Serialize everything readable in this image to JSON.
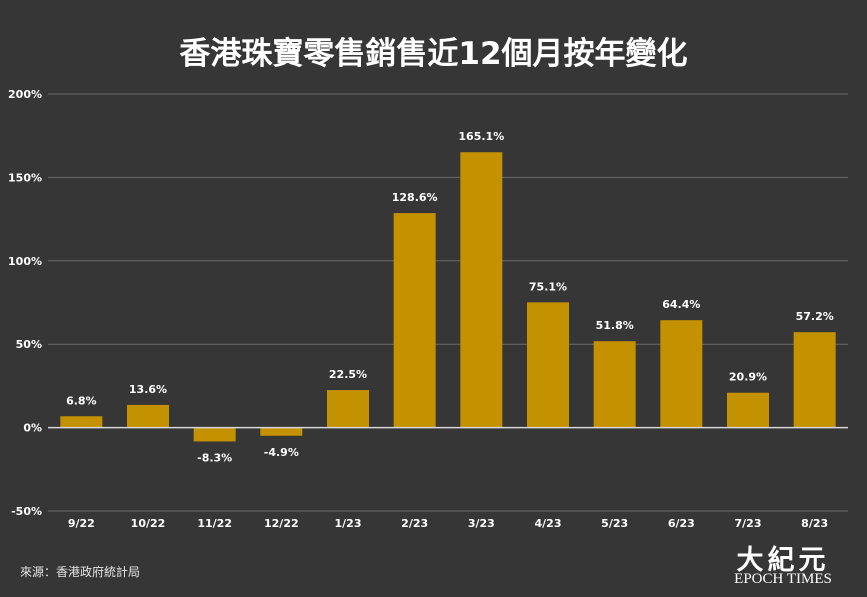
{
  "chart_data": {
    "type": "bar",
    "title": "香港珠寶零售銷售近12個月按年變化",
    "categories": [
      "9/22",
      "10/22",
      "11/22",
      "12/22",
      "1/23",
      "2/23",
      "3/23",
      "4/23",
      "5/23",
      "6/23",
      "7/23",
      "8/23"
    ],
    "values": [
      6.8,
      13.6,
      -8.3,
      -4.9,
      22.5,
      128.6,
      165.1,
      75.1,
      51.8,
      64.4,
      20.9,
      57.2
    ],
    "value_labels": [
      "6.8%",
      "13.6%",
      "-8.3%",
      "-4.9%",
      "22.5%",
      "128.6%",
      "165.1%",
      "75.1%",
      "51.8%",
      "64.4%",
      "20.9%",
      "57.2%"
    ],
    "ylim": [
      -50,
      200
    ],
    "yticks": [
      -50,
      0,
      50,
      100,
      150,
      200
    ],
    "ytick_labels": [
      "-50%",
      "0%",
      "50%",
      "100%",
      "150%",
      "200%"
    ],
    "xlabel": "",
    "ylabel": "",
    "grid": true,
    "bar_color": "#c49100"
  },
  "source": "來源：香港政府統計局",
  "logo": {
    "chinese": "大紀元",
    "english": "EPOCH TIMES"
  },
  "colors": {
    "background": "#363636",
    "gridline": "#6a6a6a",
    "zero_line": "#d8d8d8",
    "text": "#ffffff"
  }
}
